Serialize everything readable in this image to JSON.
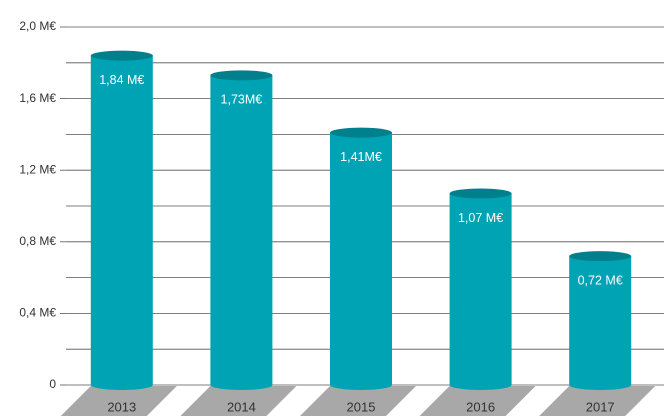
{
  "chart_data": {
    "type": "cylinder_bar",
    "categories": [
      "2013",
      "2014",
      "2015",
      "2016",
      "2017"
    ],
    "values": [
      1.84,
      1.73,
      1.41,
      1.07,
      0.72
    ],
    "value_labels": [
      "1,84 M€",
      "1,73M€",
      "1,41M€",
      "1,07 M€",
      "0,72 M€"
    ],
    "color": "#00a3b4",
    "ylim": [
      0,
      2.0
    ],
    "yticks": [
      0,
      {
        "value": 0.4,
        "label": "0,4 M€"
      },
      {
        "value": 0.8,
        "label": "0,8 M€"
      },
      {
        "value": 1.2,
        "label": "1,2 M€"
      },
      {
        "value": 1.6,
        "label": "1,6 M€"
      },
      {
        "value": 2.0,
        "label": "2,0 M€"
      }
    ],
    "minor_yticks": [
      0.2,
      0.6,
      1.0,
      1.4,
      1.8
    ],
    "grid": true
  }
}
